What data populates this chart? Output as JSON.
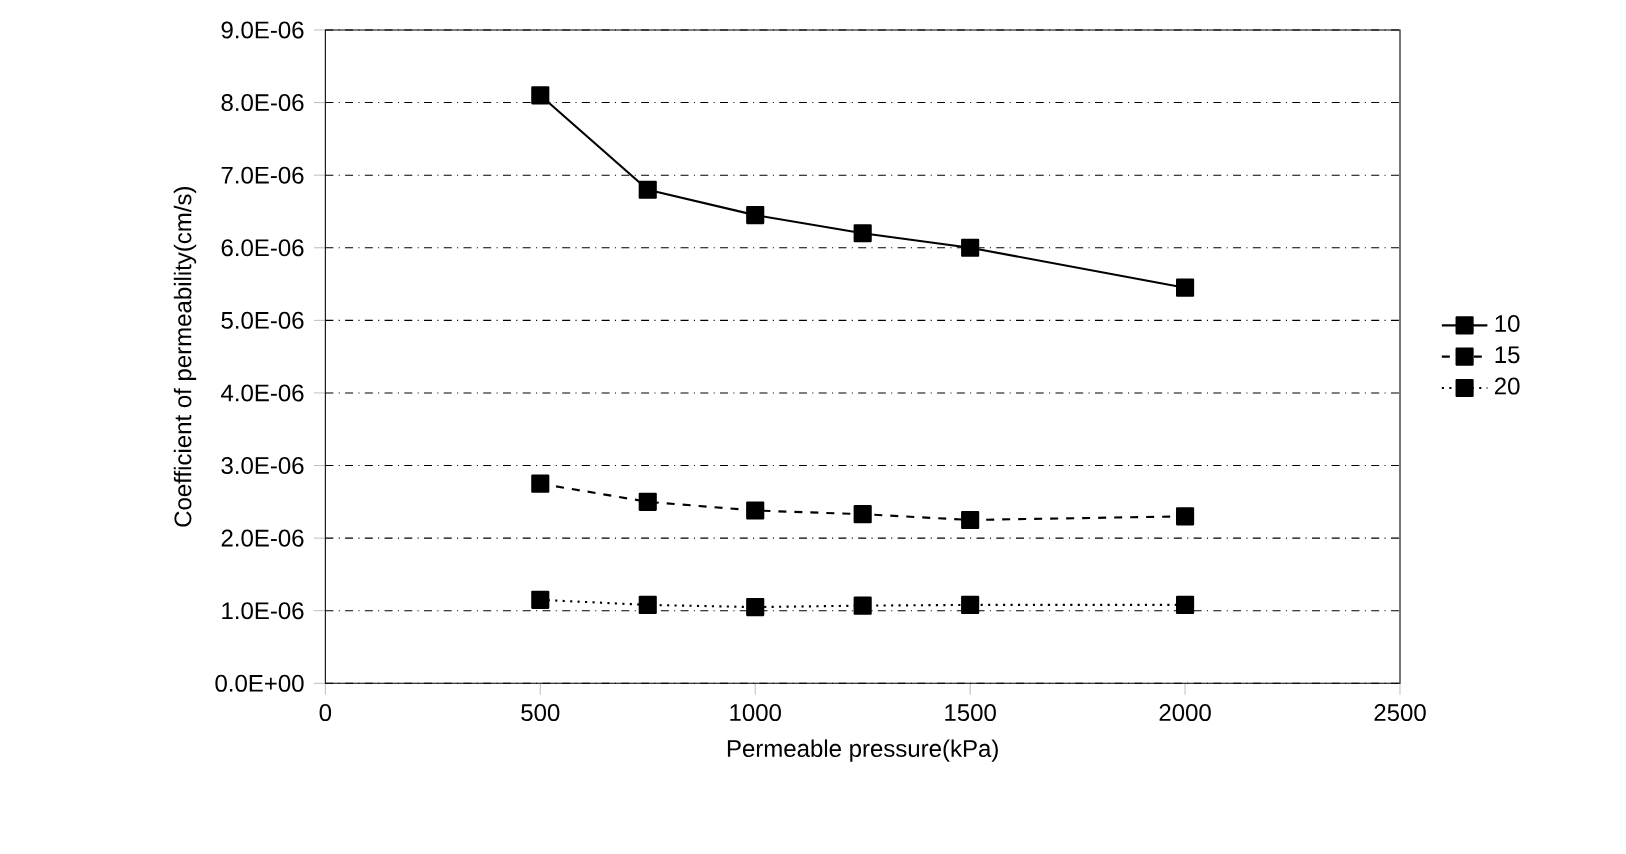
{
  "chart_data": {
    "type": "line",
    "xlabel": "Permeable pressure(kPa)",
    "ylabel": "Coefficient of permeability(cm/s)",
    "x": [
      500,
      750,
      1000,
      1250,
      1500,
      2000
    ],
    "series": [
      {
        "name": "10",
        "color": "#000000",
        "line_style": "solid",
        "values": [
          8.1e-06,
          6.8e-06,
          6.45e-06,
          6.2e-06,
          6e-06,
          5.45e-06
        ]
      },
      {
        "name": "15",
        "color": "#000000",
        "line_style": "dashed",
        "values": [
          2.75e-06,
          2.5e-06,
          2.38e-06,
          2.33e-06,
          2.25e-06,
          2.3e-06
        ]
      },
      {
        "name": "20",
        "color": "#000000",
        "line_style": "dotted",
        "values": [
          1.15e-06,
          1.08e-06,
          1.05e-06,
          1.07e-06,
          1.08e-06,
          1.08e-06
        ]
      }
    ],
    "xlim": [
      0,
      2500
    ],
    "xticks": [
      0,
      500,
      1000,
      1500,
      2000,
      2500
    ],
    "ylim": [
      0,
      9e-06
    ],
    "yticks": [
      {
        "value": 0,
        "label": "0.0E+00"
      },
      {
        "value": 1e-06,
        "label": "1.0E-06"
      },
      {
        "value": 2e-06,
        "label": "2.0E-06"
      },
      {
        "value": 3e-06,
        "label": "3.0E-06"
      },
      {
        "value": 4e-06,
        "label": "4.0E-06"
      },
      {
        "value": 5e-06,
        "label": "5.0E-06"
      },
      {
        "value": 6e-06,
        "label": "6.0E-06"
      },
      {
        "value": 7e-06,
        "label": "7.0E-06"
      },
      {
        "value": 8e-06,
        "label": "8.0E-06"
      },
      {
        "value": 9e-06,
        "label": "9.0E-06"
      }
    ],
    "grid": "y",
    "legend": "right",
    "marker": "square"
  }
}
